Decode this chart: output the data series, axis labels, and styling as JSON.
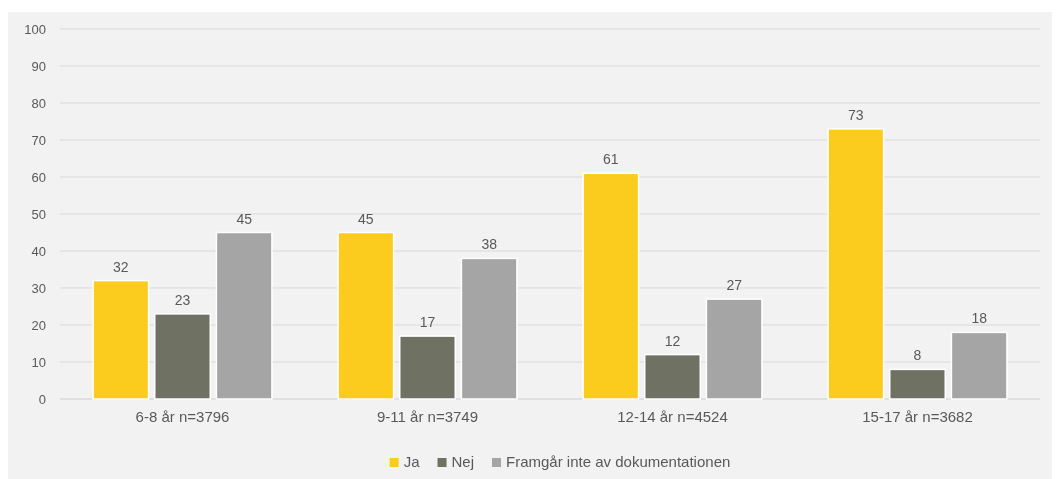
{
  "chart_data": {
    "type": "bar",
    "categories": [
      "6-8 år n=3796",
      "9-11 år n=3749",
      "12-14 år n=4524",
      "15-17 år n=3682"
    ],
    "series": [
      {
        "name": "Ja",
        "color": "#fbcc1e",
        "values": [
          32,
          45,
          61,
          73
        ]
      },
      {
        "name": "Nej",
        "color": "#6f7162",
        "values": [
          23,
          17,
          12,
          8
        ]
      },
      {
        "name": "Framgår inte av dokumentationen",
        "color": "#a5a5a5",
        "values": [
          45,
          38,
          27,
          18
        ]
      }
    ],
    "ylim": [
      0,
      100
    ],
    "yticks": [
      0,
      10,
      20,
      30,
      40,
      50,
      60,
      70,
      80,
      90,
      100
    ],
    "grid": "y",
    "legend": "bottom",
    "data_labels": true
  }
}
